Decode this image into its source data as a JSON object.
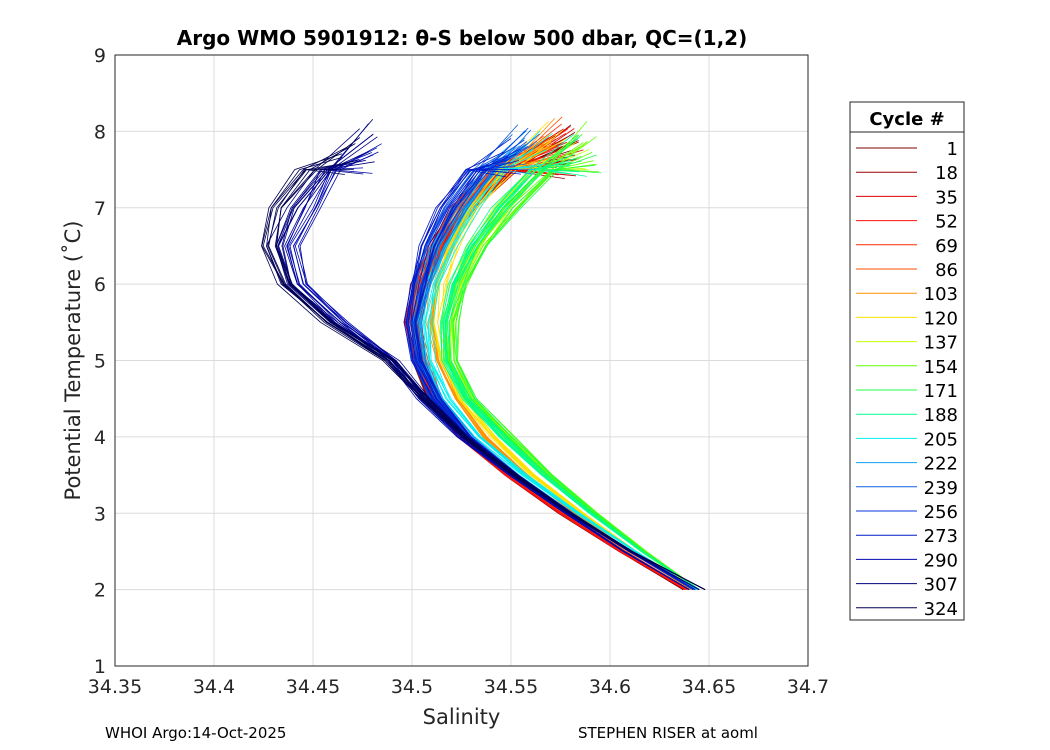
{
  "chart_data": {
    "type": "line",
    "title": "Argo WMO 5901912: θ-S below 500 dbar,  QC=(1,2)",
    "xlabel": "Salinity",
    "ylabel": "Potential Temperature (˚C)",
    "xlim": [
      34.35,
      34.7
    ],
    "ylim": [
      1,
      9
    ],
    "xticks": [
      "34.35",
      "34.4",
      "34.45",
      "34.5",
      "34.55",
      "34.6",
      "34.65",
      "34.7"
    ],
    "yticks": [
      "1",
      "2",
      "3",
      "4",
      "5",
      "6",
      "7",
      "8",
      "9"
    ],
    "grid": true,
    "legend": {
      "title": "Cycle #",
      "placement": "outside-right"
    },
    "theta": [
      8.0,
      7.5,
      7.0,
      6.5,
      6.0,
      5.5,
      5.0,
      4.5,
      4.0,
      3.5,
      3.0,
      2.5,
      2.0
    ],
    "series": [
      {
        "cycle": "1",
        "color": "#7f0000",
        "S": [
          34.578,
          34.547,
          34.526,
          34.513,
          34.504,
          34.5,
          34.503,
          34.51,
          34.525,
          34.548,
          34.575,
          34.605,
          34.637
        ]
      },
      {
        "cycle": "18",
        "color": "#9a0000",
        "S": [
          34.576,
          34.546,
          34.525,
          34.512,
          34.503,
          34.499,
          34.503,
          34.51,
          34.526,
          34.549,
          34.576,
          34.606,
          34.638
        ]
      },
      {
        "cycle": "35",
        "color": "#e00000",
        "S": [
          34.58,
          34.548,
          34.527,
          34.513,
          34.504,
          34.5,
          34.504,
          34.511,
          34.526,
          34.549,
          34.576,
          34.606,
          34.639
        ]
      },
      {
        "cycle": "52",
        "color": "#ff1010",
        "S": [
          34.575,
          34.545,
          34.525,
          34.512,
          34.503,
          34.499,
          34.503,
          34.51,
          34.525,
          34.548,
          34.575,
          34.605,
          34.638
        ]
      },
      {
        "cycle": "69",
        "color": "#ff2a00",
        "S": [
          34.572,
          34.544,
          34.525,
          34.513,
          34.505,
          34.501,
          34.505,
          34.512,
          34.527,
          34.55,
          34.577,
          34.607,
          34.639
        ]
      },
      {
        "cycle": "86",
        "color": "#ff5000",
        "S": [
          34.57,
          34.543,
          34.524,
          34.513,
          34.505,
          34.502,
          34.506,
          34.513,
          34.528,
          34.551,
          34.578,
          34.608,
          34.64
        ]
      },
      {
        "cycle": "103",
        "color": "#ff9000",
        "S": [
          34.568,
          34.543,
          34.526,
          34.516,
          34.51,
          34.508,
          34.512,
          34.521,
          34.536,
          34.557,
          34.582,
          34.61,
          34.641
        ]
      },
      {
        "cycle": "120",
        "color": "#ffe000",
        "S": [
          34.572,
          34.547,
          34.53,
          34.52,
          34.514,
          34.512,
          34.516,
          34.525,
          34.541,
          34.561,
          34.586,
          34.613,
          34.642
        ]
      },
      {
        "cycle": "137",
        "color": "#c0ff00",
        "S": [
          34.585,
          34.563,
          34.545,
          34.532,
          34.523,
          34.518,
          34.519,
          34.528,
          34.547,
          34.568,
          34.591,
          34.616,
          34.644
        ]
      },
      {
        "cycle": "154",
        "color": "#60ff00",
        "S": [
          34.59,
          34.57,
          34.55,
          34.535,
          34.525,
          34.52,
          34.52,
          34.53,
          34.55,
          34.57,
          34.593,
          34.618,
          34.645
        ]
      },
      {
        "cycle": "171",
        "color": "#20ff40",
        "S": [
          34.588,
          34.568,
          34.549,
          34.534,
          34.524,
          34.519,
          34.52,
          34.53,
          34.549,
          34.569,
          34.592,
          34.617,
          34.645
        ]
      },
      {
        "cycle": "188",
        "color": "#00ff90",
        "S": [
          34.582,
          34.562,
          34.544,
          34.53,
          34.521,
          34.516,
          34.517,
          34.527,
          34.545,
          34.566,
          34.59,
          34.616,
          34.645
        ]
      },
      {
        "cycle": "205",
        "color": "#00f0f0",
        "S": [
          34.565,
          34.545,
          34.53,
          34.519,
          34.511,
          34.507,
          34.509,
          34.518,
          34.534,
          34.557,
          34.584,
          34.613,
          34.644
        ]
      },
      {
        "cycle": "222",
        "color": "#10a0f0",
        "S": [
          34.56,
          34.54,
          34.525,
          34.514,
          34.507,
          34.503,
          34.505,
          34.514,
          34.53,
          34.553,
          34.581,
          34.611,
          34.643
        ]
      },
      {
        "cycle": "239",
        "color": "#1060e0",
        "S": [
          34.557,
          34.537,
          34.522,
          34.511,
          34.505,
          34.501,
          34.503,
          34.512,
          34.528,
          34.552,
          34.58,
          34.61,
          34.642
        ]
      },
      {
        "cycle": "256",
        "color": "#0838e0",
        "S": [
          34.555,
          34.535,
          34.52,
          34.51,
          34.504,
          34.5,
          34.503,
          34.512,
          34.528,
          34.552,
          34.58,
          34.61,
          34.642
        ]
      },
      {
        "cycle": "273",
        "color": "#0018c8",
        "S": [
          34.55,
          34.53,
          34.516,
          34.507,
          34.502,
          34.499,
          34.502,
          34.512,
          34.528,
          34.552,
          34.58,
          34.61,
          34.643
        ]
      },
      {
        "cycle": "290",
        "color": "#0008b0",
        "S": [
          34.48,
          34.46,
          34.45,
          34.44,
          34.445,
          34.465,
          34.49,
          34.505,
          34.525,
          34.55,
          34.578,
          34.607,
          34.64
        ]
      },
      {
        "cycle": "307",
        "color": "#000080",
        "S": [
          34.478,
          34.455,
          34.44,
          34.432,
          34.438,
          34.46,
          34.49,
          34.507,
          34.527,
          34.552,
          34.58,
          34.61,
          34.645
        ]
      },
      {
        "cycle": "324",
        "color": "#000050",
        "S": [
          34.47,
          34.447,
          34.432,
          34.428,
          34.437,
          34.458,
          34.489,
          34.507,
          34.527,
          34.552,
          34.58,
          34.611,
          34.648
        ]
      }
    ]
  },
  "footer": {
    "left": "WHOI Argo:14-Oct-2025",
    "right": "STEPHEN RISER at aoml"
  }
}
